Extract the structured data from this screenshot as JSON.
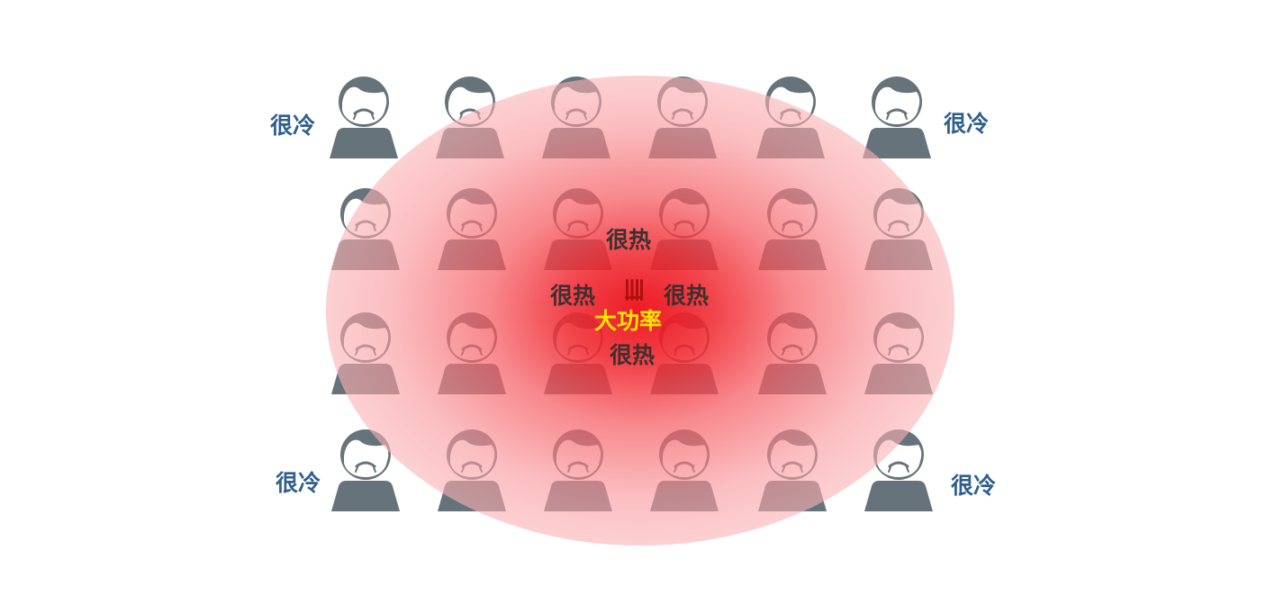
{
  "labels": {
    "cold": "很冷",
    "hot": "很热",
    "heater": "大功率"
  },
  "icons": {
    "person": "sad-person-icon",
    "heater": "heater-icon"
  },
  "colors": {
    "person": "#66737a",
    "cold_text": "#2f5f8c",
    "hot_text": "#3d3030",
    "heater_text": "#ffe600",
    "heat_core": "#ec141e",
    "heat_edge": "#fdd5d7"
  },
  "grid": {
    "rows": 4,
    "columns": 6
  }
}
